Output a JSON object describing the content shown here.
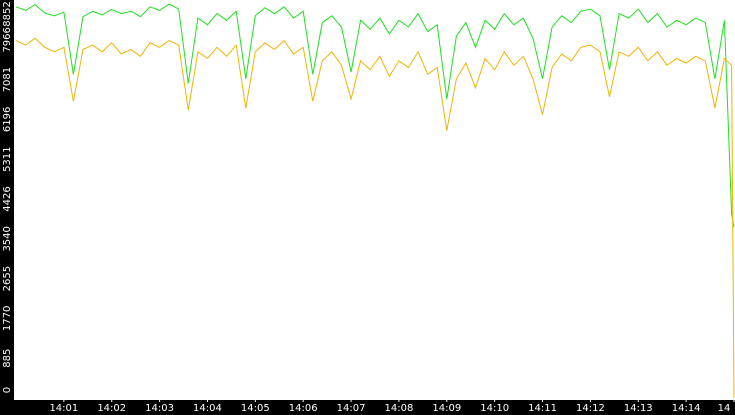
{
  "chart_data": {
    "type": "line",
    "x": [
      0,
      0.2,
      0.4,
      0.6,
      0.8,
      1.0,
      1.2,
      1.4,
      1.6,
      1.8,
      2.0,
      2.2,
      2.4,
      2.6,
      2.8,
      3.0,
      3.2,
      3.4,
      3.6,
      3.8,
      4.0,
      4.2,
      4.4,
      4.6,
      4.8,
      5.0,
      5.2,
      5.4,
      5.6,
      5.8,
      6.0,
      6.2,
      6.4,
      6.6,
      6.8,
      7.0,
      7.2,
      7.4,
      7.6,
      7.8,
      8.0,
      8.2,
      8.4,
      8.6,
      8.8,
      9.0,
      9.2,
      9.4,
      9.6,
      9.8,
      10.0,
      10.2,
      10.4,
      10.6,
      10.8,
      11.0,
      11.2,
      11.4,
      11.6,
      11.8,
      12.0,
      12.2,
      12.4,
      12.6,
      12.8,
      13.0,
      13.2,
      13.4,
      13.6,
      13.8,
      14.0,
      14.2,
      14.4,
      14.6,
      14.8,
      14.95,
      15
    ],
    "series": [
      {
        "color": "#1ee01e",
        "values": [
          8700,
          8620,
          8750,
          8560,
          8500,
          8580,
          7200,
          8480,
          8600,
          8520,
          8640,
          8550,
          8600,
          8480,
          8700,
          8620,
          8760,
          8650,
          7000,
          8450,
          8300,
          8550,
          8400,
          8600,
          7100,
          8500,
          8680,
          8550,
          8700,
          8450,
          8600,
          7200,
          8350,
          8500,
          8250,
          7250,
          8400,
          8200,
          8450,
          8100,
          8400,
          8250,
          8550,
          8150,
          8300,
          6650,
          8050,
          8350,
          7800,
          8400,
          8200,
          8550,
          8300,
          8450,
          8000,
          7100,
          8250,
          8500,
          8350,
          8600,
          8650,
          8500,
          7300,
          8550,
          8450,
          8650,
          8350,
          8550,
          8250,
          8400,
          8300,
          8450,
          8350,
          7100,
          8400,
          4100,
          3800
        ]
      },
      {
        "color": "#f0b400",
        "values": [
          7950,
          7850,
          8000,
          7800,
          7700,
          7800,
          6600,
          7750,
          7850,
          7700,
          7900,
          7650,
          7750,
          7600,
          7900,
          7800,
          7950,
          7850,
          6400,
          7700,
          7550,
          7800,
          7600,
          7850,
          6450,
          7700,
          7900,
          7750,
          7950,
          7650,
          7800,
          6600,
          7500,
          7700,
          7400,
          6650,
          7500,
          7300,
          7600,
          7150,
          7500,
          7350,
          7700,
          7200,
          7350,
          5950,
          7100,
          7450,
          6900,
          7550,
          7300,
          7700,
          7400,
          7600,
          7100,
          6300,
          7350,
          7650,
          7500,
          7800,
          7850,
          7700,
          6700,
          7700,
          7600,
          7800,
          7500,
          7700,
          7400,
          7550,
          7450,
          7600,
          7500,
          6450,
          7550,
          7400,
          0
        ]
      }
    ],
    "xlim": [
      0,
      15
    ],
    "xticks": [
      {
        "value": 1,
        "label": "14:01"
      },
      {
        "value": 2,
        "label": "14:02"
      },
      {
        "value": 3,
        "label": "14:03"
      },
      {
        "value": 4,
        "label": "14:04"
      },
      {
        "value": 5,
        "label": "14:05"
      },
      {
        "value": 6,
        "label": "14:06"
      },
      {
        "value": 7,
        "label": "14:07"
      },
      {
        "value": 8,
        "label": "14:08"
      },
      {
        "value": 9,
        "label": "14:09"
      },
      {
        "value": 10,
        "label": "14:10"
      },
      {
        "value": 11,
        "label": "14:11"
      },
      {
        "value": 12,
        "label": "14:12"
      },
      {
        "value": 13,
        "label": "14:13"
      },
      {
        "value": 14,
        "label": "14:14"
      },
      {
        "value": 15,
        "label": "14"
      }
    ],
    "ylim": [
      0,
      8852
    ],
    "yticks": [
      0,
      885,
      1770,
      2655,
      3540,
      4426,
      5311,
      6196,
      7081,
      7966,
      8852
    ]
  }
}
